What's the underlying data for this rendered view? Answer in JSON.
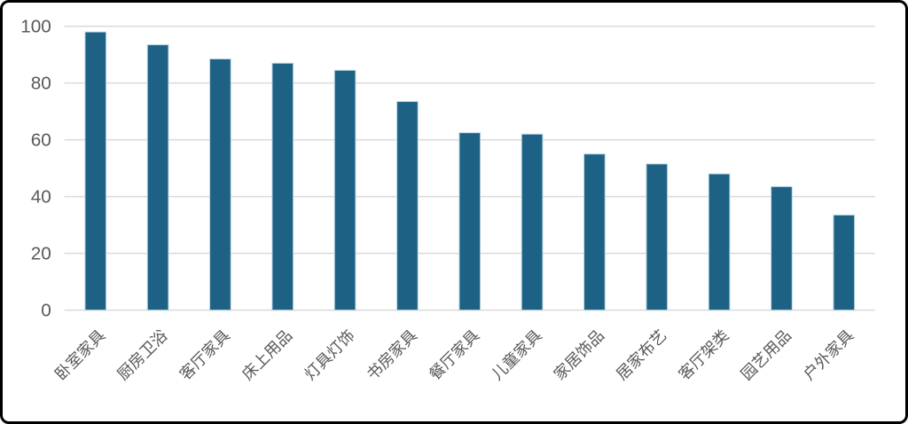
{
  "frame": {
    "background_color": "#ffffff",
    "border_color": "#000000"
  },
  "chart_data": {
    "type": "bar",
    "title": "",
    "xlabel": "",
    "ylabel": "",
    "categories": [
      "卧室家具",
      "厨房卫浴",
      "客厅家具",
      "床上用品",
      "灯具灯饰",
      "书房家具",
      "餐厅家具",
      "儿童家具",
      "家居饰品",
      "居家布艺",
      "客厅架类",
      "园艺用品",
      "户外家具"
    ],
    "values": [
      98,
      93.5,
      88.5,
      87,
      84.5,
      73.5,
      62.5,
      62,
      55,
      51.5,
      48,
      43.5,
      33.5
    ],
    "ylim": [
      0,
      100
    ],
    "yticks": [
      0,
      20,
      40,
      60,
      80,
      100
    ],
    "grid": true,
    "legend": false,
    "legend_position": "none",
    "bar_color": "#1D6285",
    "bar_border_color": "#BAD4E2",
    "gridline_color": "#DADADA",
    "axis_label_color": "#595959",
    "x_label_rotation_deg": -45
  }
}
